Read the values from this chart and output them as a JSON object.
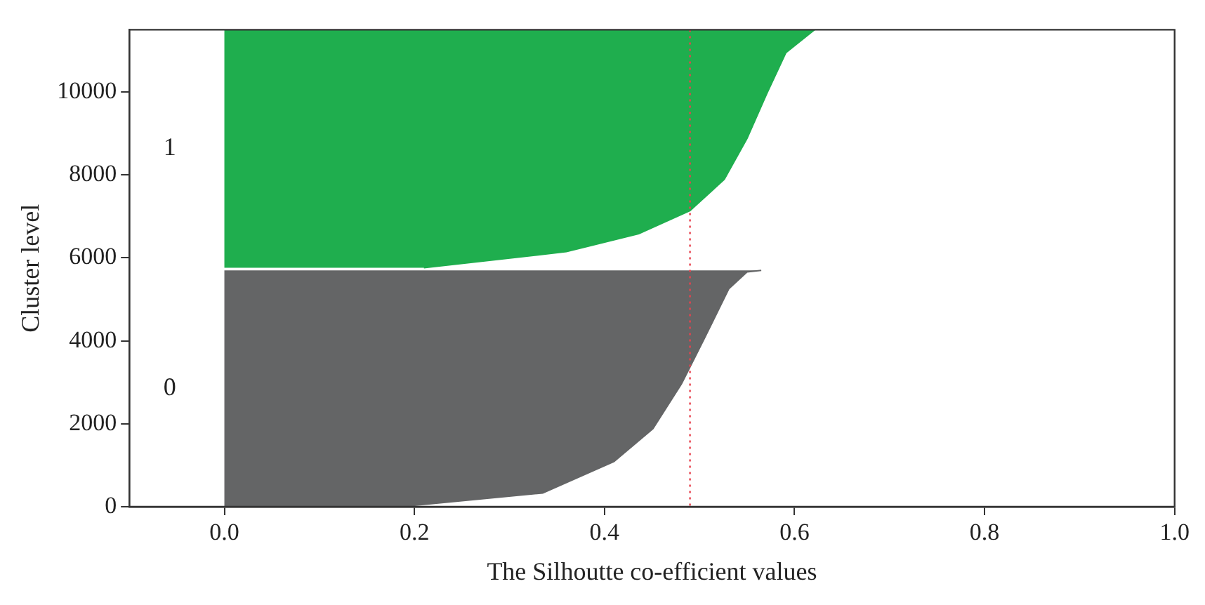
{
  "chart_data": {
    "type": "area",
    "orientation": "horizontal",
    "xlabel": "The Silhoutte co-efficient values",
    "ylabel": "Cluster level",
    "series": [
      {
        "name": "0",
        "color": "#646566",
        "x": [
          0,
          330,
          1090,
          1880,
          2960,
          4050,
          5260,
          5660,
          5700
        ],
        "values": [
          0.185,
          0.335,
          0.41,
          0.451,
          0.481,
          0.505,
          0.531,
          0.55,
          0.565
        ]
      },
      {
        "name": "1",
        "color": "#1fae4e",
        "x": [
          5760,
          6150,
          6580,
          7140,
          7890,
          8880,
          9970,
          10950,
          11500
        ],
        "values": [
          0.21,
          0.36,
          0.436,
          0.49,
          0.526,
          0.55,
          0.571,
          0.591,
          0.621
        ]
      }
    ],
    "xlim": [
      -0.1,
      1.0
    ],
    "xticks": [
      {
        "value": 0,
        "label": "0.0"
      },
      {
        "value": 0.2,
        "label": "0.2"
      },
      {
        "value": 0.4,
        "label": "0.4"
      },
      {
        "value": 0.6,
        "label": "0.6"
      },
      {
        "value": 0.8,
        "label": "0.8"
      },
      {
        "value": 1,
        "label": "1.0"
      }
    ],
    "ylim": [
      0,
      11500
    ],
    "yticks": [
      0,
      2000,
      4000,
      6000,
      8000,
      10000
    ],
    "ref_lines": [
      {
        "axis": "x",
        "value": 0.49,
        "color": "#e8434f",
        "line_style": "dotted"
      }
    ]
  }
}
